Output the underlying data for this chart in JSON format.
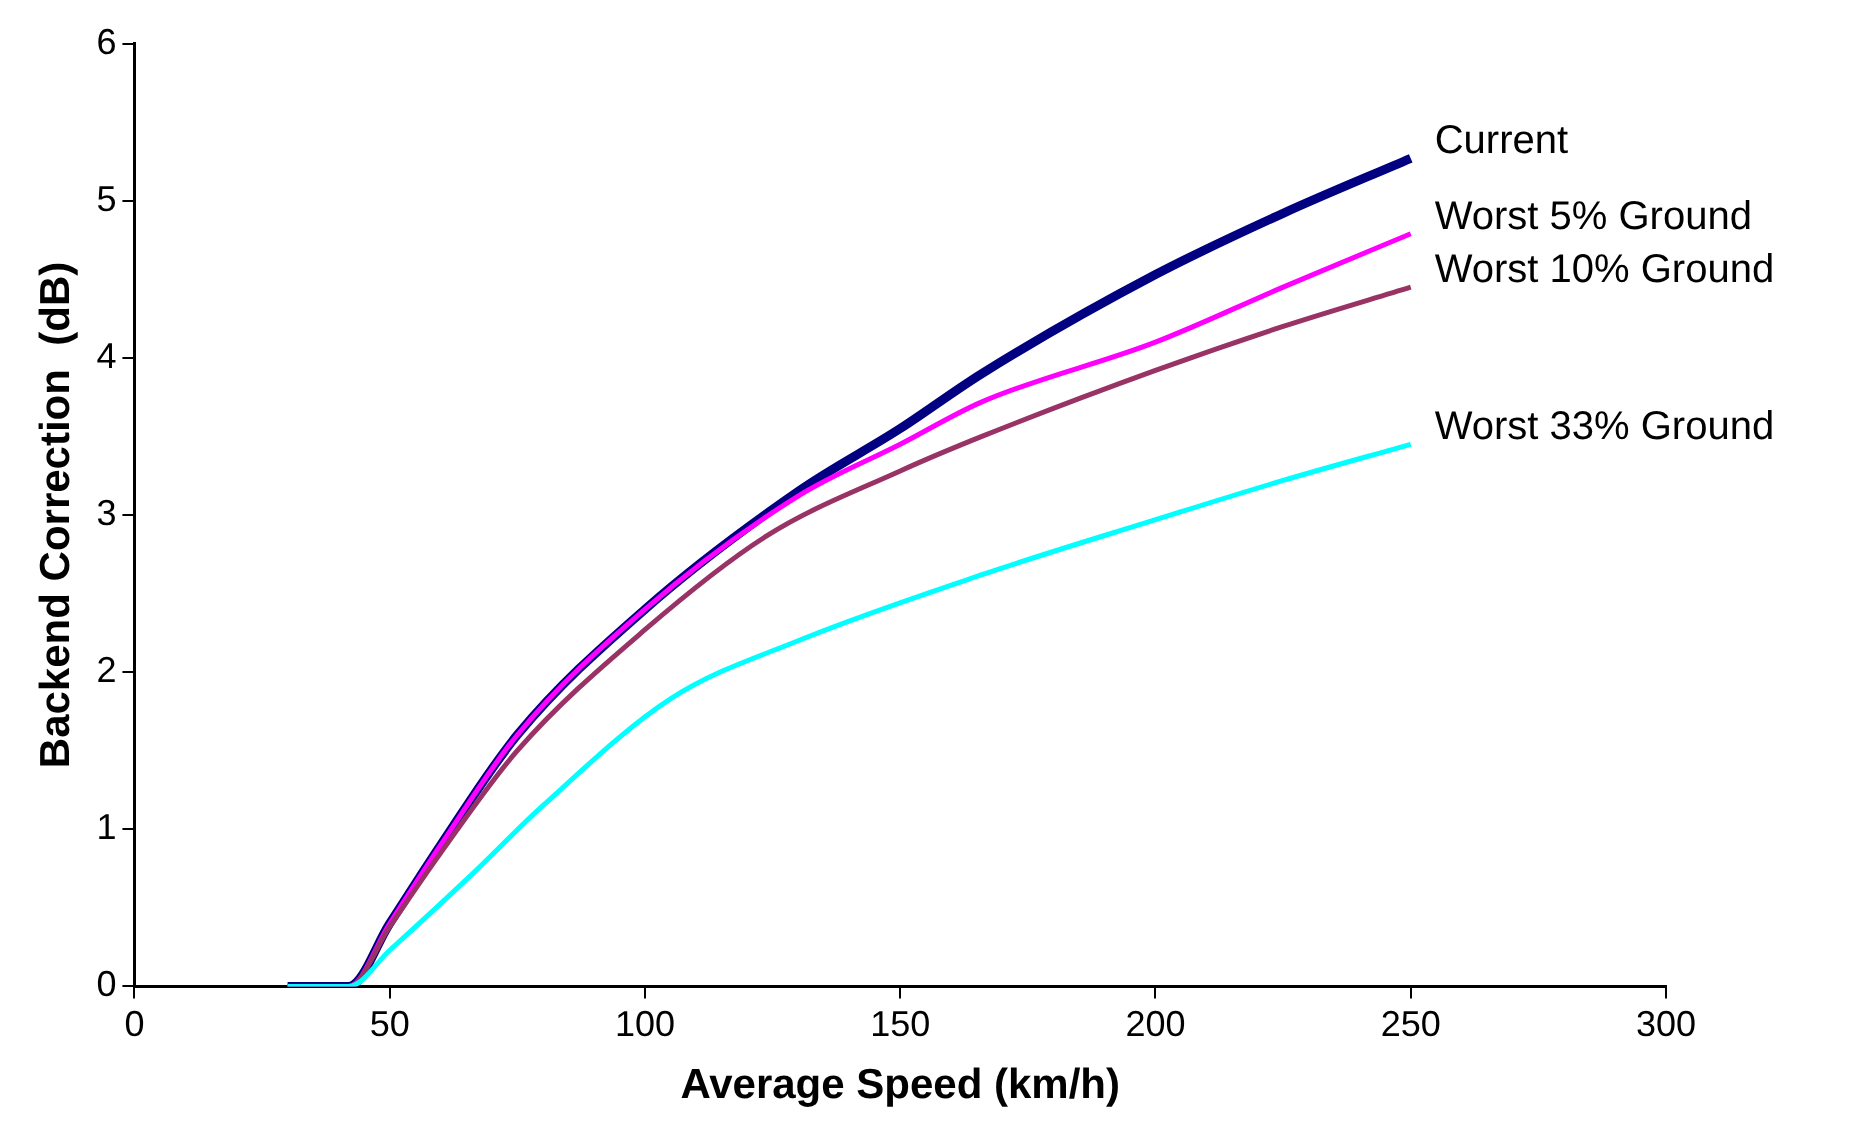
{
  "chart_data": {
    "type": "line",
    "xlabel": "Average Speed (km/h)",
    "ylabel": "Backend Correction  (dB)",
    "xlim": [
      0,
      300
    ],
    "xticks": [
      0,
      50,
      100,
      150,
      200,
      250,
      300
    ],
    "ylim": [
      0,
      6
    ],
    "yticks": [
      0,
      1,
      2,
      3,
      4,
      5,
      6
    ],
    "grid": false,
    "legend": false,
    "marker": "none",
    "line_style": "solid",
    "series": [
      {
        "name": "Current",
        "color": "#000080",
        "x": [
          30,
          42,
          50,
          60,
          75,
          100,
          130,
          150,
          166,
          200,
          225,
          250
        ],
        "values": [
          0,
          0,
          0.4,
          0.9,
          1.6,
          2.4,
          3.15,
          3.55,
          3.9,
          4.53,
          4.92,
          5.27
        ]
      },
      {
        "name": "Worst 5% Ground",
        "color": "#ff00ff",
        "x": [
          30,
          42,
          50,
          60,
          75,
          100,
          130,
          150,
          166,
          200,
          225,
          250
        ],
        "values": [
          0,
          0,
          0.4,
          0.9,
          1.6,
          2.4,
          3.12,
          3.45,
          3.72,
          4.1,
          4.45,
          4.79
        ]
      },
      {
        "name": "Worst 10% Ground",
        "color": "#993366",
        "x": [
          30,
          42,
          50,
          60,
          75,
          100,
          124,
          150,
          166,
          200,
          225,
          250
        ],
        "values": [
          0,
          0,
          0.38,
          0.85,
          1.5,
          2.27,
          2.87,
          3.28,
          3.5,
          3.92,
          4.2,
          4.45
        ]
      },
      {
        "name": "Worst 33% Ground",
        "color": "#00ffff",
        "x": [
          30,
          42,
          50,
          66,
          80,
          105,
          130,
          166,
          200,
          225,
          250
        ],
        "values": [
          0,
          0,
          0.23,
          0.71,
          1.15,
          1.83,
          2.2,
          2.62,
          2.97,
          3.22,
          3.45
        ]
      }
    ]
  }
}
